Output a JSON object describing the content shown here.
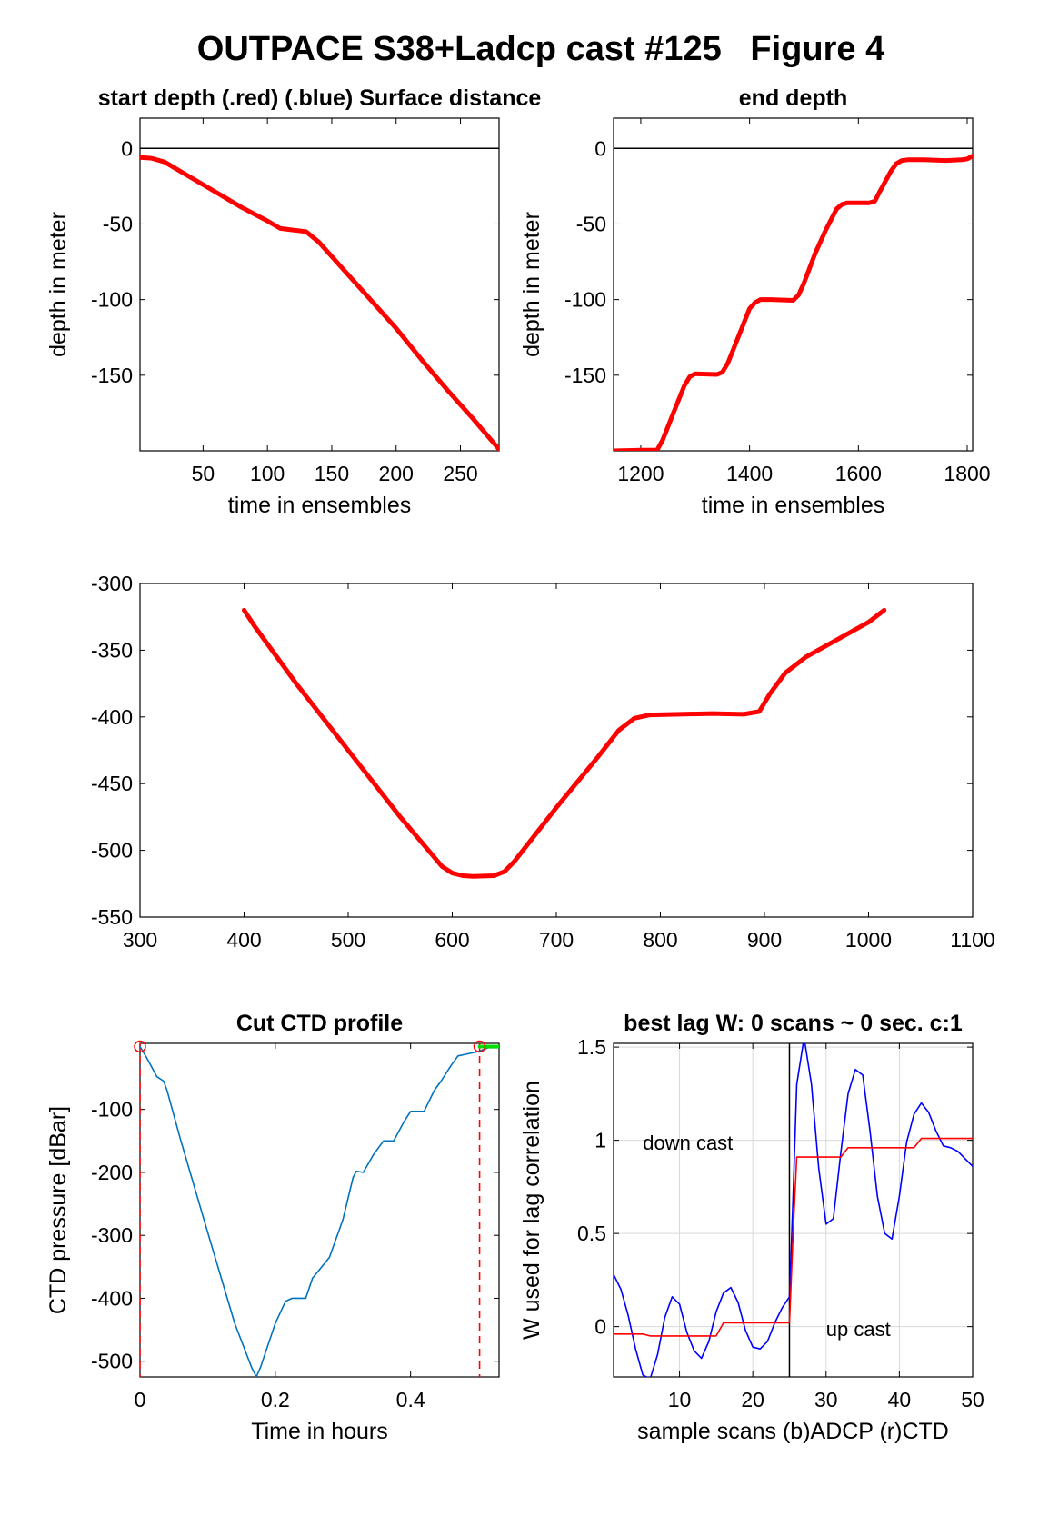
{
  "figure": {
    "title": "OUTPACE S38+Ladcp cast #125   Figure 4"
  },
  "chart_data": [
    {
      "id": "start",
      "type": "line",
      "title": "start depth (.red) (.blue) Surface distance",
      "xlabel": "time in ensembles",
      "ylabel": "depth in meter",
      "xlim": [
        1,
        280
      ],
      "ylim": [
        -200,
        20
      ],
      "xticks": [
        50,
        100,
        150,
        200,
        250
      ],
      "yticks": [
        0,
        -50,
        -100,
        -150
      ],
      "hline": 0,
      "series": [
        {
          "color": "#ff0000",
          "x": [
            1,
            10,
            20,
            40,
            60,
            80,
            100,
            110,
            120,
            130,
            140,
            160,
            180,
            200,
            220,
            240,
            260,
            280
          ],
          "y": [
            -6,
            -6.5,
            -9,
            -19,
            -29,
            -39,
            -48,
            -53,
            -54,
            -55,
            -62,
            -81,
            -100,
            -119,
            -140,
            -160,
            -179,
            -199
          ]
        }
      ]
    },
    {
      "id": "end",
      "type": "line",
      "title": "end depth",
      "xlabel": "time in ensembles",
      "ylabel": "depth in meter",
      "xlim": [
        1150,
        1810
      ],
      "ylim": [
        -200,
        20
      ],
      "xticks": [
        1200,
        1400,
        1600,
        1800
      ],
      "yticks": [
        0,
        -50,
        -100,
        -150
      ],
      "hline": 0,
      "series": [
        {
          "color": "#ff0000",
          "x": [
            1150,
            1200,
            1230,
            1240,
            1260,
            1280,
            1290,
            1300,
            1340,
            1350,
            1360,
            1380,
            1400,
            1410,
            1420,
            1440,
            1480,
            1490,
            1500,
            1520,
            1540,
            1560,
            1570,
            1580,
            1620,
            1630,
            1640,
            1660,
            1670,
            1680,
            1690,
            1720,
            1760,
            1790,
            1800,
            1810
          ],
          "y": [
            -200,
            -199.5,
            -199.5,
            -193,
            -175,
            -157,
            -151,
            -149,
            -149.5,
            -148,
            -142,
            -124,
            -106,
            -102,
            -100,
            -100,
            -100.5,
            -97,
            -89,
            -70,
            -54,
            -40,
            -37,
            -36,
            -36,
            -35,
            -28,
            -15,
            -10,
            -8,
            -7.5,
            -7.5,
            -8,
            -7.5,
            -7,
            -5
          ]
        }
      ]
    },
    {
      "id": "middle",
      "type": "line",
      "title": "",
      "xlabel": "",
      "ylabel": "",
      "xlim": [
        300,
        1100
      ],
      "ylim": [
        -550,
        -300
      ],
      "xticks": [
        300,
        400,
        500,
        600,
        700,
        800,
        900,
        1000,
        1100
      ],
      "yticks": [
        -300,
        -350,
        -400,
        -450,
        -500,
        -550
      ],
      "series": [
        {
          "color": "#ff0000",
          "x": [
            400,
            410,
            450,
            500,
            550,
            590,
            600,
            610,
            620,
            640,
            650,
            660,
            700,
            740,
            760,
            775,
            790,
            850,
            880,
            895,
            905,
            920,
            940,
            970,
            1000,
            1015
          ],
          "y": [
            -320,
            -332,
            -375,
            -425,
            -475,
            -512,
            -517,
            -519,
            -519.5,
            -519,
            -516,
            -508,
            -468,
            -430,
            -410,
            -401,
            -398.5,
            -397.5,
            -398,
            -396,
            -383,
            -367,
            -355,
            -342,
            -329,
            -320
          ]
        }
      ]
    },
    {
      "id": "ctd",
      "type": "line",
      "title": "Cut CTD profile",
      "xlabel": "Time in hours",
      "ylabel": "CTD pressure [dBar]",
      "xlim": [
        0,
        0.5308
      ],
      "ylim": [
        -525,
        5
      ],
      "xticks": [
        0,
        0.2,
        0.4
      ],
      "xticklabels": [
        "0",
        "0.2",
        "0.4"
      ],
      "yticks": [
        -100,
        -200,
        -300,
        -400,
        -500
      ],
      "vlines": [
        0,
        0.502
      ],
      "markers": [
        {
          "x": 0,
          "y": 0
        },
        {
          "x": 0.502,
          "y": 0
        }
      ],
      "series": [
        {
          "color": "#0072bd",
          "x": [
            0,
            0.01,
            0.025,
            0.035,
            0.04,
            0.06,
            0.1,
            0.14,
            0.165,
            0.172,
            0.178,
            0.2,
            0.215,
            0.225,
            0.245,
            0.255,
            0.265,
            0.28,
            0.3,
            0.315,
            0.32,
            0.33,
            0.345,
            0.36,
            0.375,
            0.39,
            0.4,
            0.42,
            0.435,
            0.445,
            0.46,
            0.47,
            0.5,
            0.515,
            0.5308
          ],
          "y": [
            0,
            -18,
            -48,
            -55,
            -70,
            -148,
            -295,
            -440,
            -510,
            -525,
            -510,
            -440,
            -405,
            -400,
            -400,
            -368,
            -355,
            -335,
            -275,
            -208,
            -198,
            -200,
            -172,
            -150,
            -150,
            -120,
            -103,
            -103,
            -70,
            -55,
            -30,
            -15,
            -8,
            -2,
            -2
          ]
        },
        {
          "color": "#00dd00",
          "x": [
            0.502,
            0.53
          ],
          "y": [
            0,
            0
          ]
        }
      ]
    },
    {
      "id": "lag",
      "type": "line",
      "title": "best lag W: 0 scans ~ 0 sec.  c:1",
      "xlabel": "sample scans (b)ADCP (r)CTD",
      "ylabel": "W used for lag correlation",
      "xlim": [
        1,
        50
      ],
      "ylim": [
        -0.27,
        1.52
      ],
      "xticks": [
        10,
        20,
        30,
        40,
        50
      ],
      "yticks": [
        1.5,
        1,
        0.5,
        0
      ],
      "grid": true,
      "vline": 25,
      "annotations": [
        {
          "text": "down cast",
          "x": 5,
          "y": 0.95
        },
        {
          "text": "up cast",
          "x": 30,
          "y": -0.05
        }
      ],
      "series": [
        {
          "color": "#0000ff",
          "x": [
            1,
            2,
            3,
            4,
            5,
            6,
            7,
            8,
            9,
            10,
            11,
            12,
            13,
            14,
            15,
            16,
            17,
            18,
            19,
            20,
            21,
            22,
            23,
            24,
            25,
            25.5,
            26,
            27,
            28,
            29,
            30,
            31,
            32,
            33,
            34,
            35,
            36,
            37,
            38,
            39,
            40,
            41,
            42,
            43,
            44,
            45,
            46,
            47,
            48,
            49,
            50
          ],
          "y": [
            0.28,
            0.2,
            0.06,
            -0.12,
            -0.26,
            -0.28,
            -0.15,
            0.05,
            0.16,
            0.12,
            -0.03,
            -0.13,
            -0.17,
            -0.08,
            0.08,
            0.18,
            0.21,
            0.13,
            -0.02,
            -0.11,
            -0.12,
            -0.08,
            0.02,
            0.1,
            0.16,
            0.7,
            1.3,
            1.55,
            1.3,
            0.85,
            0.55,
            0.58,
            0.93,
            1.25,
            1.38,
            1.35,
            1.05,
            0.7,
            0.5,
            0.47,
            0.7,
            0.99,
            1.14,
            1.2,
            1.15,
            1.05,
            0.97,
            0.96,
            0.94,
            0.9,
            0.86
          ]
        },
        {
          "color": "#ff0000",
          "x": [
            1,
            5,
            6,
            10,
            15,
            16,
            25,
            25.5,
            26,
            32,
            33,
            42,
            43,
            50
          ],
          "y": [
            -0.04,
            -0.04,
            -0.05,
            -0.05,
            -0.05,
            0.02,
            0.02,
            0.5,
            0.91,
            0.91,
            0.96,
            0.96,
            1.01,
            1.01
          ]
        }
      ]
    }
  ]
}
